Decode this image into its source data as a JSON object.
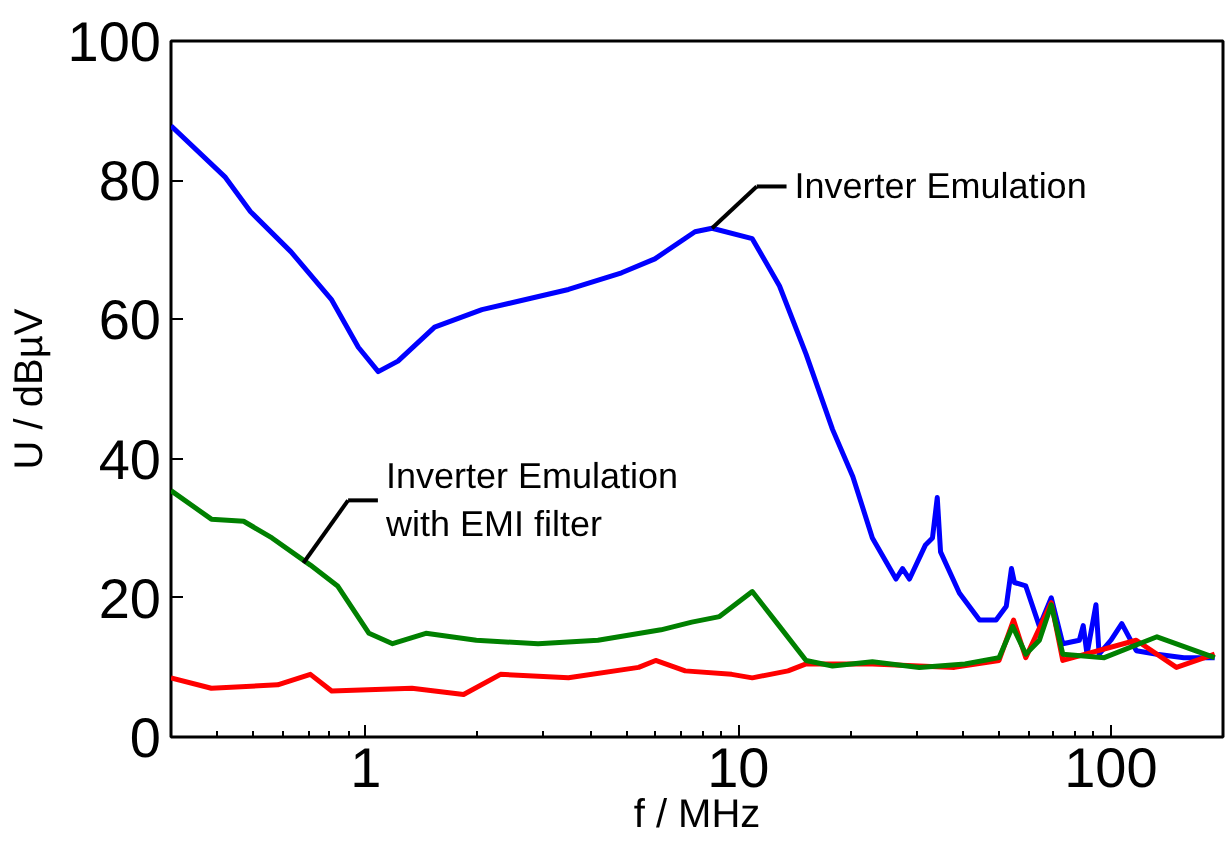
{
  "chart_data": {
    "type": "line",
    "xlabel": "f / MHz",
    "ylabel": "U / dBµV",
    "log": "x",
    "xlim": [
      0.3,
      200
    ],
    "xticks": [
      1,
      10,
      100
    ],
    "ylim": [
      0,
      100
    ],
    "yticks": [
      0,
      20,
      40,
      60,
      80,
      100
    ],
    "grid": false,
    "line_style": "solid",
    "marker": "none",
    "series": [
      {
        "color": "#0000ff",
        "x": [
          0.3,
          0.42,
          0.49,
          0.63,
          0.81,
          0.955,
          1.08,
          1.22,
          1.53,
          2.05,
          3.5,
          4.86,
          5.97,
          7.65,
          8.5,
          10.9,
          12.9,
          15.2,
          17.9,
          20.3,
          22.9,
          26.5,
          27.6,
          28.8,
          31.8,
          33.2,
          34.2,
          34.9,
          39.2,
          44.4,
          49.2,
          52.4,
          54.1,
          55.1,
          59.1,
          64.3,
          69.2,
          74.3,
          82.3,
          84.3,
          86.3,
          91.2,
          93,
          100,
          107,
          117,
          133,
          157,
          190
        ],
        "values": [
          87.8,
          80.4,
          75.5,
          69.7,
          62.8,
          56.0,
          52.5,
          54,
          58.9,
          61.4,
          64.3,
          66.7,
          68.7,
          72.6,
          73.1,
          71.6,
          64.8,
          55,
          44.2,
          37.4,
          28.6,
          22.7,
          24.2,
          22.7,
          27.6,
          28.6,
          34.4,
          26.6,
          20.7,
          16.8,
          16.8,
          18.8,
          24.2,
          22.2,
          21.7,
          15.9,
          20,
          13.4,
          13.9,
          16,
          11.9,
          19,
          11.9,
          13.9,
          16.3,
          12.4,
          11.9,
          11.4,
          11.4
        ]
      },
      {
        "color": "#ff0000",
        "x": [
          0.3,
          0.385,
          0.58,
          0.71,
          0.81,
          1.33,
          1.83,
          2.3,
          3.5,
          5.4,
          6.0,
          7.2,
          9.6,
          10.9,
          13.6,
          15.2,
          22.9,
          38,
          50.1,
          54.8,
          59.1,
          69.2,
          74.3,
          117,
          150,
          190
        ],
        "values": [
          8.5,
          7.0,
          7.5,
          9.0,
          6.6,
          7.0,
          6.1,
          9,
          8.5,
          10,
          11,
          9.5,
          9,
          8.5,
          9.5,
          10.5,
          10.5,
          10,
          11,
          16.8,
          11.4,
          19.3,
          11,
          13.9,
          10,
          11.9
        ]
      },
      {
        "color": "#008000",
        "x": [
          0.3,
          0.385,
          0.47,
          0.56,
          0.71,
          0.84,
          1.02,
          1.18,
          1.45,
          1.98,
          2.9,
          4.2,
          6.2,
          7.5,
          8.9,
          10.9,
          12.9,
          15.2,
          17.9,
          22.9,
          30.6,
          40.6,
          50.1,
          54.5,
          59.1,
          64.3,
          69.2,
          74.3,
          96,
          133,
          190
        ],
        "values": [
          35.4,
          31.3,
          31,
          28.6,
          24.7,
          21.7,
          14.9,
          13.4,
          14.9,
          13.9,
          13.4,
          13.9,
          15.4,
          16.5,
          17.3,
          20.9,
          15.9,
          11.0,
          10.2,
          10.8,
          10,
          10.5,
          11.4,
          15.9,
          11.9,
          13.9,
          19,
          11.9,
          11.4,
          14.4,
          11.4
        ]
      }
    ],
    "annotations": [
      {
        "text": "Inverter Emulation",
        "x": 8.5,
        "y": 73.1
      },
      {
        "text": "Inverter Emulation\nwith EMI filter",
        "x": 0.68,
        "y": 25
      }
    ]
  }
}
